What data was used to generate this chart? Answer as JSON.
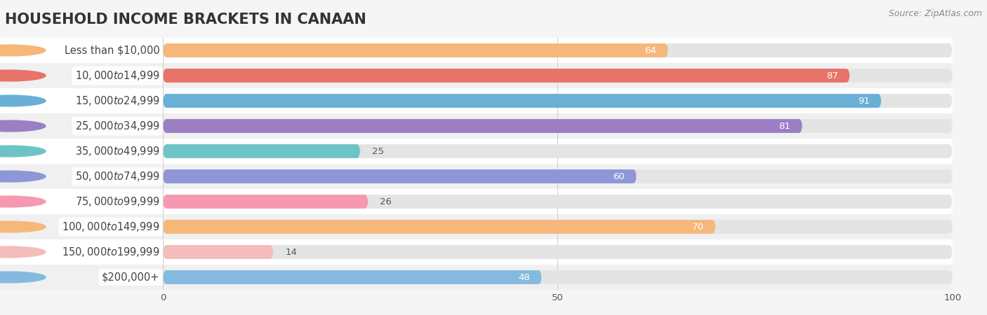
{
  "title": "HOUSEHOLD INCOME BRACKETS IN CANAAN",
  "source": "Source: ZipAtlas.com",
  "categories": [
    "Less than $10,000",
    "$10,000 to $14,999",
    "$15,000 to $24,999",
    "$25,000 to $34,999",
    "$35,000 to $49,999",
    "$50,000 to $74,999",
    "$75,000 to $99,999",
    "$100,000 to $149,999",
    "$150,000 to $199,999",
    "$200,000+"
  ],
  "values": [
    64,
    87,
    91,
    81,
    25,
    60,
    26,
    70,
    14,
    48
  ],
  "bar_colors": [
    "#F5B87A",
    "#E8736A",
    "#6AAFD6",
    "#9B7EC4",
    "#6DC4C4",
    "#8E96D8",
    "#F598B0",
    "#F5B87A",
    "#F5BCBC",
    "#85BAE0"
  ],
  "xlim": [
    0,
    100
  ],
  "xticks": [
    0,
    50,
    100
  ],
  "background_color": "#f5f5f5",
  "row_bg_color": "#ffffff",
  "bar_track_color": "#e4e4e4",
  "title_fontsize": 15,
  "label_fontsize": 10.5,
  "value_fontsize": 9.5
}
